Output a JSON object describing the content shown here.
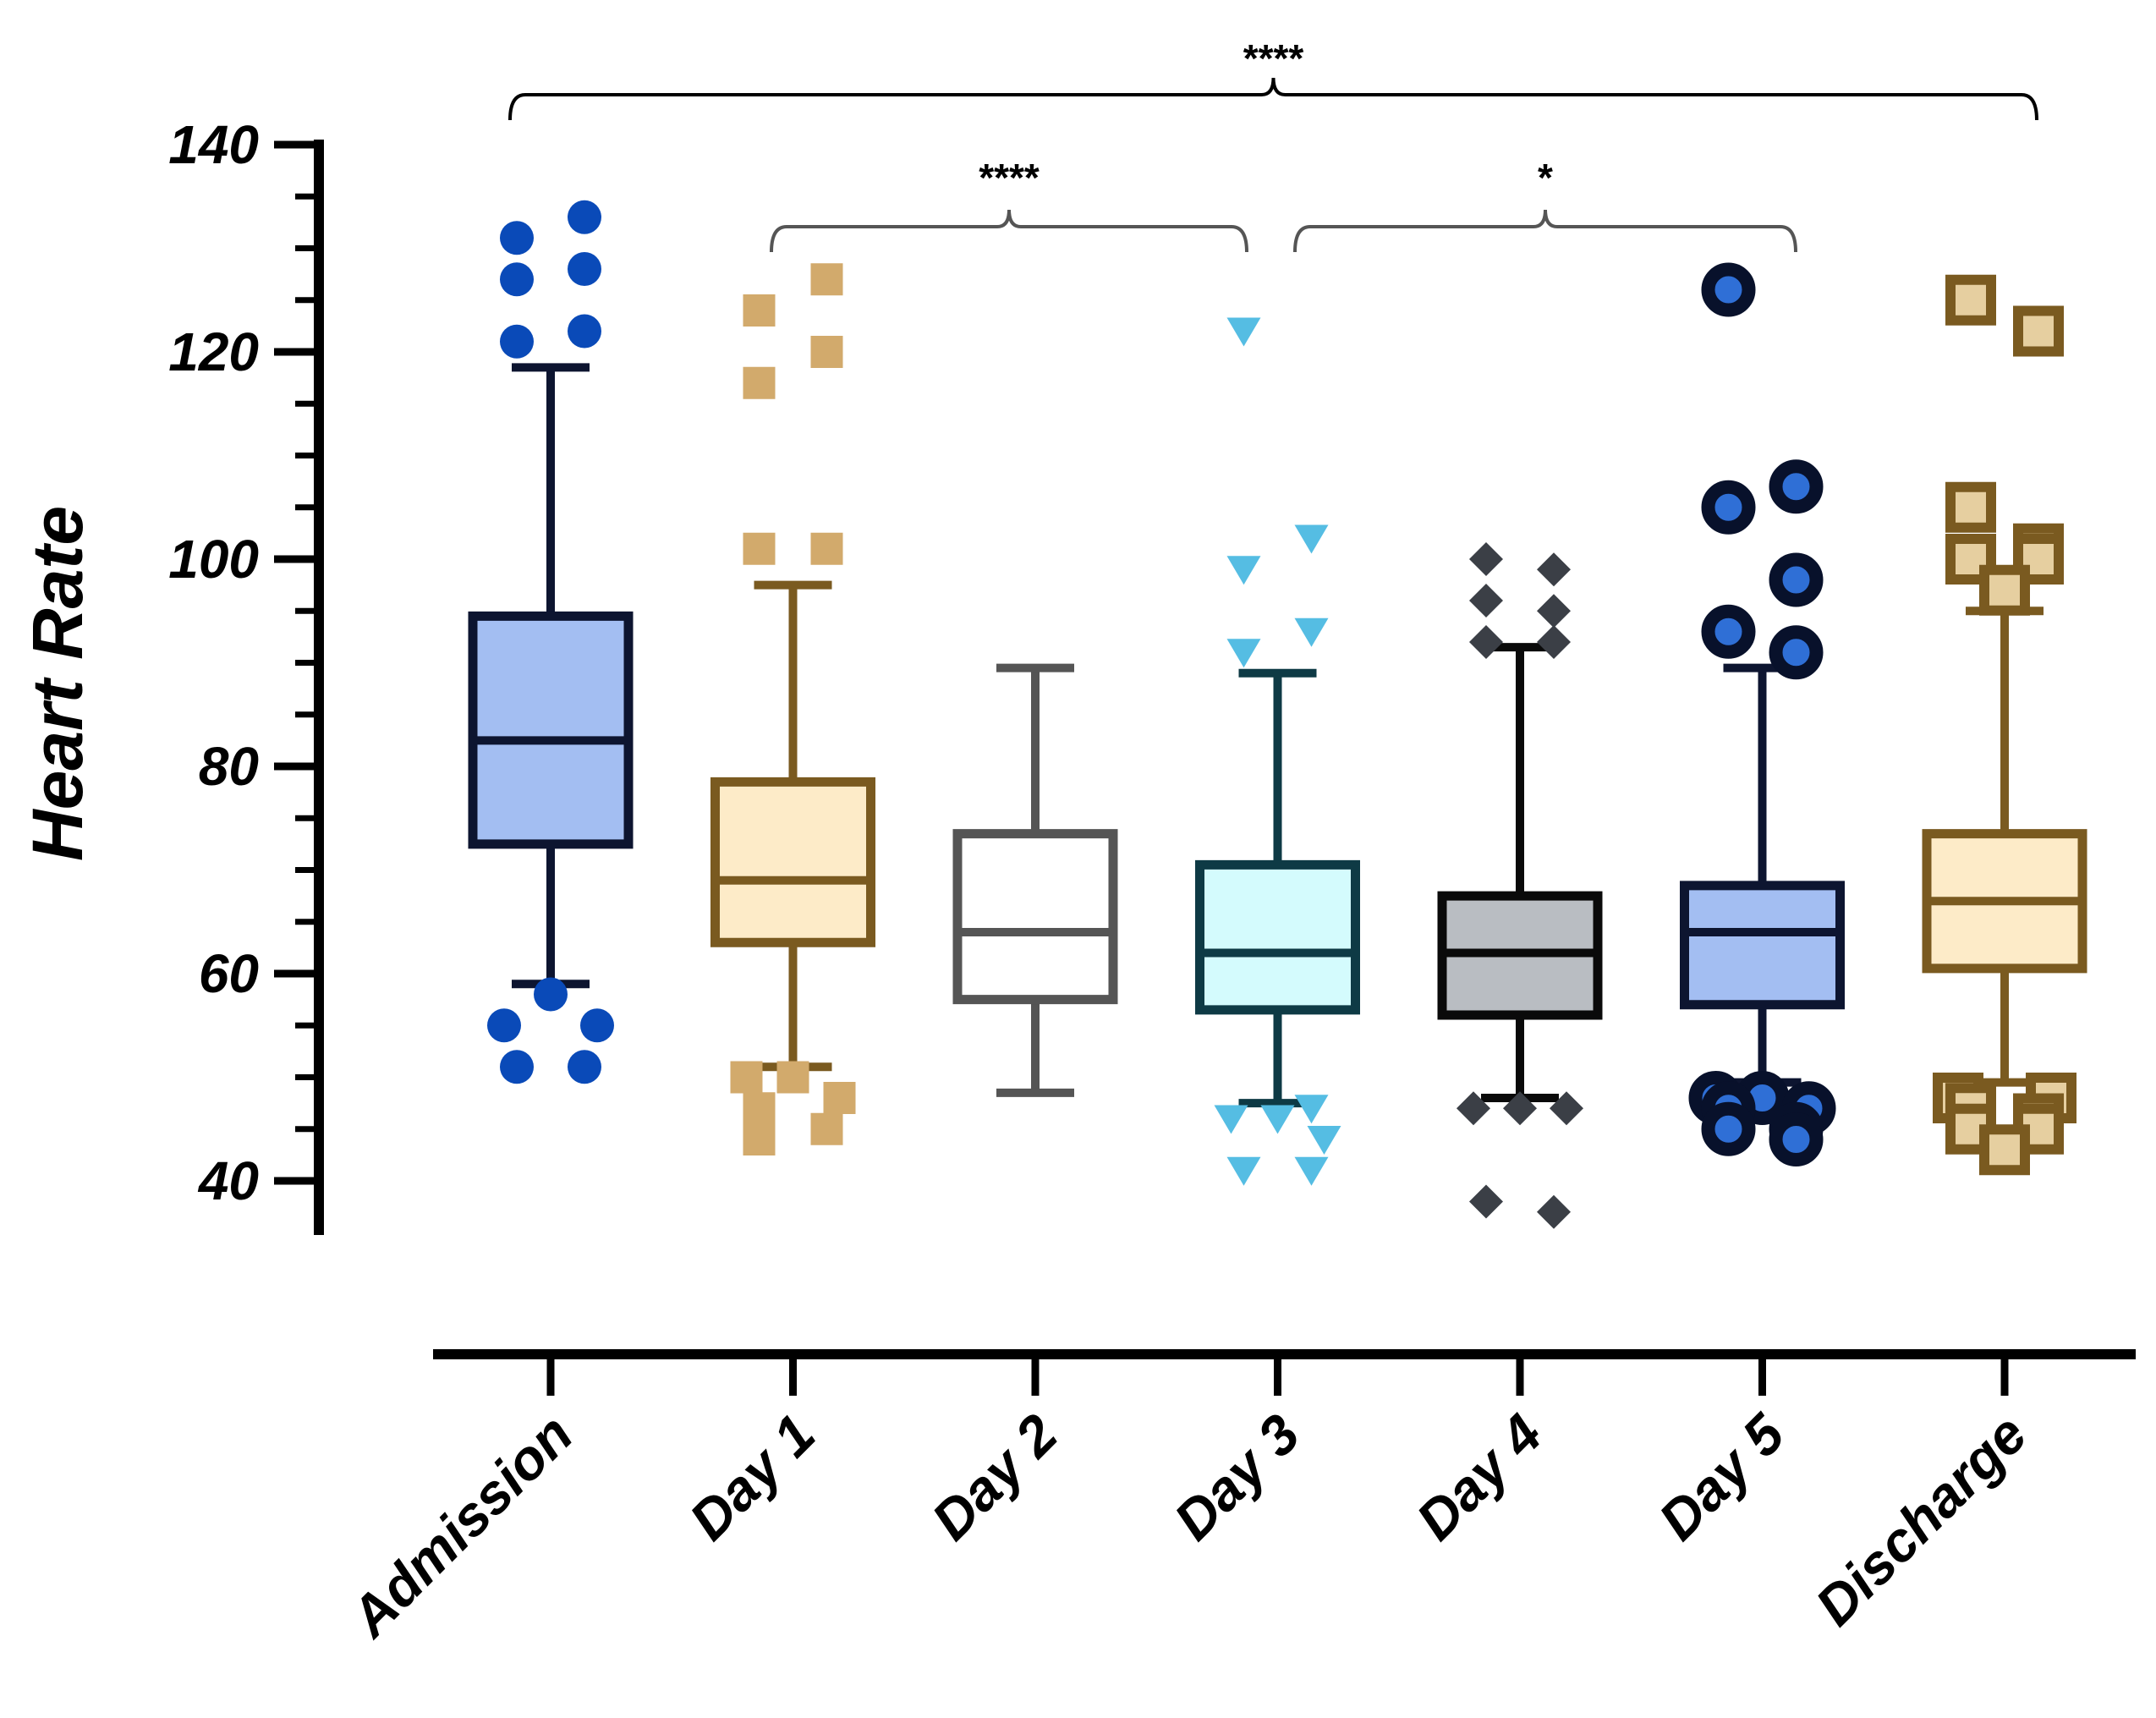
{
  "chart_data": {
    "type": "box",
    "title": "",
    "xlabel": "",
    "ylabel": "Heart Rate",
    "ylim": [
      40,
      140
    ],
    "yticks": [
      40,
      60,
      80,
      100,
      120,
      140
    ],
    "categories": [
      "Admission",
      "Day 1",
      "Day 2",
      "Day 3",
      "Day 4",
      "Day 5",
      "Discharge"
    ],
    "boxes": [
      {
        "name": "Admission",
        "whisker_low": 59,
        "q1": 72.5,
        "median": 82.5,
        "q3": 94.5,
        "whisker_high": 118.5,
        "fill": "#a3bef2",
        "stroke": "#0d1530",
        "marker": "circle",
        "marker_color": "#0a4ab8",
        "outliers": [
          131,
          133,
          127,
          128,
          121,
          122,
          58,
          55,
          55,
          51,
          51
        ]
      },
      {
        "name": "Day 1",
        "whisker_low": 51,
        "q1": 63,
        "median": 69,
        "q3": 78.5,
        "whisker_high": 97.5,
        "fill": "#fdebc8",
        "stroke": "#7a5a20",
        "marker": "square",
        "marker_color": "#d2aa6c",
        "outliers": [
          124,
          127,
          117,
          120,
          101,
          101,
          50,
          50,
          48,
          47,
          45,
          44
        ]
      },
      {
        "name": "Day 2",
        "whisker_low": 48.5,
        "q1": 57.5,
        "median": 64,
        "q3": 73.5,
        "whisker_high": 89.5,
        "fill": "#ffffff",
        "stroke": "#555555",
        "marker": "none",
        "marker_color": "#ffffff",
        "outliers": []
      },
      {
        "name": "Day 3",
        "whisker_low": 47.5,
        "q1": 56.5,
        "median": 62,
        "q3": 70.5,
        "whisker_high": 89,
        "fill": "#d4fbfd",
        "stroke": "#0e3a45",
        "marker": "triangle-down",
        "marker_color": "#55bde3",
        "outliers": [
          122,
          102,
          99,
          93,
          91,
          47,
          46,
          46,
          44,
          41,
          41
        ]
      },
      {
        "name": "Day 4",
        "whisker_low": 48,
        "q1": 56,
        "median": 62,
        "q3": 67.5,
        "whisker_high": 91.5,
        "fill": "#b9bdc2",
        "stroke": "#0a0a0a",
        "marker": "diamond",
        "marker_color": "#3b3f46",
        "outliers": [
          100,
          99,
          96,
          95,
          92,
          92,
          47,
          47,
          47,
          38,
          37
        ]
      },
      {
        "name": "Day 5",
        "whisker_low": 49.5,
        "q1": 57,
        "median": 64,
        "q3": 68.5,
        "whisker_high": 89.5,
        "fill": "#a3bef2",
        "stroke": "#0d1530",
        "marker": "ring",
        "marker_color": "#08112b",
        "outliers": [
          126,
          107,
          105,
          98,
          93,
          91,
          48,
          48,
          47,
          47,
          45,
          45,
          44
        ]
      },
      {
        "name": "Discharge",
        "whisker_low": 49.5,
        "q1": 60.5,
        "median": 67,
        "q3": 73.5,
        "whisker_high": 95,
        "fill": "#fdebc8",
        "stroke": "#7a5a20",
        "marker": "square-dot",
        "marker_color": "#7a5a20",
        "outliers": [
          125,
          122,
          105,
          101,
          100,
          100,
          97,
          48,
          48,
          47,
          46,
          45,
          45,
          43
        ]
      }
    ],
    "significance": [
      {
        "from": "Admission",
        "to": "Discharge",
        "label": "****"
      },
      {
        "from": "Day 1",
        "to": "Day 3",
        "label": "****"
      },
      {
        "from": "Day 3",
        "to": "Day 5",
        "label": "*"
      }
    ],
    "grid": false,
    "legend": "none"
  }
}
